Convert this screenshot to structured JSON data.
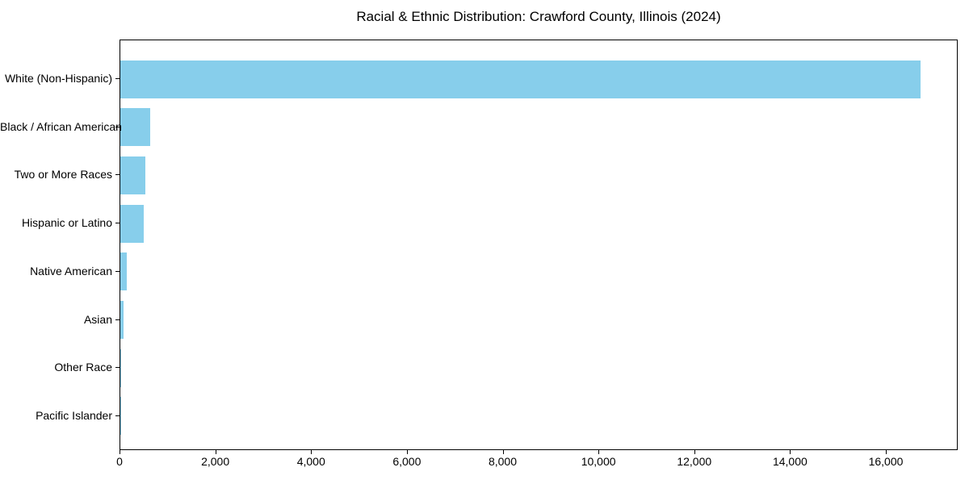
{
  "figure": {
    "title": "Racial & Ethnic Distribution: Crawford County, Illinois (2024)"
  },
  "chart_data": {
    "type": "bar",
    "orientation": "horizontal",
    "title": "Racial & Ethnic Distribution: Crawford County, Illinois (2024)",
    "xlabel": "",
    "ylabel": "",
    "categories": [
      "White (Non-Hispanic)",
      "Black / African American",
      "Two or More Races",
      "Hispanic or Latino",
      "Native American",
      "Asian",
      "Other Race",
      "Pacific Islander"
    ],
    "values": [
      16700,
      630,
      520,
      490,
      130,
      60,
      10,
      3
    ],
    "xlim": [
      0,
      17500
    ],
    "xticks": [
      0,
      2000,
      4000,
      6000,
      8000,
      10000,
      12000,
      14000,
      16000
    ],
    "xtick_labels": [
      "0",
      "2,000",
      "4,000",
      "6,000",
      "8,000",
      "10,000",
      "12,000",
      "14,000",
      "16,000"
    ],
    "bar_color": "#87CEEB",
    "axis_color": "#000000",
    "text_color": "#000000",
    "background": "#FFFFFF",
    "grid": false,
    "legend": false
  }
}
